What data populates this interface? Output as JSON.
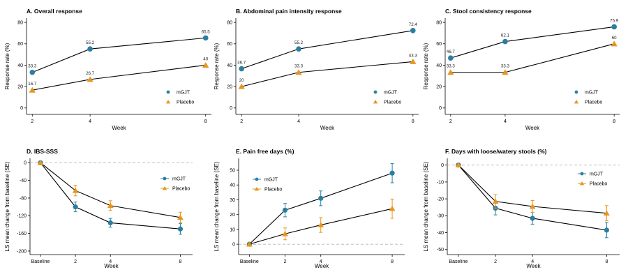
{
  "figure": {
    "background": "#ffffff"
  },
  "colors": {
    "mGJT": "#2a7fa0",
    "Placebo": "#e8951b",
    "line": "#000000",
    "zeroline": "#b4b4b4"
  },
  "chart_data": [
    {
      "id": "A",
      "type": "line",
      "title": "A. Overall response",
      "xlabel": "Week",
      "ylabel": "Response rate (%)",
      "x": [
        "2",
        "4",
        "8"
      ],
      "xpos": [
        2,
        4,
        8
      ],
      "xlim": [
        1.8,
        8.2
      ],
      "ylim": [
        -6,
        84
      ],
      "yticks": [
        0,
        20,
        40,
        60,
        80
      ],
      "yticklabels": [
        "0",
        "20",
        "40",
        "60",
        "80"
      ],
      "error_bars": false,
      "zero_line": false,
      "legend_position": "bottom-right",
      "series": [
        {
          "name": "mGJT",
          "marker": "circle",
          "values": [
            33.3,
            55.2,
            65.5
          ],
          "labels": [
            "33.3",
            "55.2",
            "65.5"
          ]
        },
        {
          "name": "Placebo",
          "marker": "triangle",
          "values": [
            16.7,
            26.7,
            40
          ],
          "labels": [
            "16.7",
            "26.7",
            "40"
          ]
        }
      ]
    },
    {
      "id": "B",
      "type": "line",
      "title": "B. Abdominal pain intensity response",
      "xlabel": "Week",
      "ylabel": "Response rate (%)",
      "x": [
        "2",
        "4",
        "8"
      ],
      "xpos": [
        2,
        4,
        8
      ],
      "xlim": [
        1.8,
        8.2
      ],
      "ylim": [
        -6,
        84
      ],
      "yticks": [
        0,
        20,
        40,
        60,
        80
      ],
      "yticklabels": [
        "0",
        "20",
        "40",
        "60",
        "80"
      ],
      "error_bars": false,
      "zero_line": false,
      "legend_position": "bottom-right",
      "series": [
        {
          "name": "mGJT",
          "marker": "circle",
          "values": [
            36.7,
            55.2,
            72.4
          ],
          "labels": [
            "36.7",
            "55.2",
            "72.4"
          ]
        },
        {
          "name": "Placebo",
          "marker": "triangle",
          "values": [
            20,
            33.3,
            43.3
          ],
          "labels": [
            "20",
            "33.3",
            "43.3"
          ]
        }
      ]
    },
    {
      "id": "C",
      "type": "line",
      "title": "C. Stool consistency response",
      "xlabel": "Week",
      "ylabel": "Response rate (%)",
      "x": [
        "2",
        "4",
        "8"
      ],
      "xpos": [
        2,
        4,
        8
      ],
      "xlim": [
        1.8,
        8.2
      ],
      "ylim": [
        -6,
        84
      ],
      "yticks": [
        0,
        20,
        40,
        60,
        80
      ],
      "yticklabels": [
        "0",
        "20",
        "40",
        "60",
        "80"
      ],
      "error_bars": false,
      "zero_line": false,
      "legend_position": "bottom-right",
      "series": [
        {
          "name": "mGJT",
          "marker": "circle",
          "values": [
            46.7,
            62.1,
            75.9
          ],
          "labels": [
            "46.7",
            "62.1",
            "75.9"
          ]
        },
        {
          "name": "Placebo",
          "marker": "triangle",
          "values": [
            33.3,
            33.3,
            60
          ],
          "labels": [
            "33.3",
            "33.3",
            "60"
          ]
        }
      ]
    },
    {
      "id": "D",
      "type": "line",
      "title": "D. IBS-SSS",
      "xlabel": "Week",
      "ylabel": "LS mean change from baseline (SE)",
      "x": [
        "Baseline",
        "2",
        "4",
        "8"
      ],
      "xpos": [
        0,
        2,
        4,
        8
      ],
      "xlim": [
        -0.6,
        8.7
      ],
      "ylim": [
        -208,
        10
      ],
      "yticks": [
        0,
        -40,
        -80,
        -120,
        -160,
        -200
      ],
      "yticklabels": [
        "0",
        "-40",
        "-80",
        "-120",
        "-160",
        "-200"
      ],
      "error_bars": true,
      "zero_line": true,
      "legend_position": "middle-right",
      "series": [
        {
          "name": "mGJT",
          "marker": "circle",
          "values": [
            0,
            -100,
            -136,
            -150
          ],
          "errors": [
            0,
            11,
            10,
            12
          ]
        },
        {
          "name": "Placebo",
          "marker": "triangle",
          "values": [
            0,
            -63,
            -97,
            -124
          ],
          "errors": [
            0,
            12,
            11,
            12
          ]
        }
      ]
    },
    {
      "id": "E",
      "type": "line",
      "title": "E. Pain free days (%)",
      "xlabel": "Week",
      "ylabel": "LS mean change from baseline (SE)",
      "x": [
        "Baseline",
        "2",
        "4",
        "8"
      ],
      "xpos": [
        0,
        2,
        4,
        8
      ],
      "xlim": [
        -0.6,
        8.7
      ],
      "ylim": [
        -7,
        58
      ],
      "yticks": [
        0,
        10,
        20,
        30,
        40,
        50
      ],
      "yticklabels": [
        "0",
        "10",
        "20",
        "30",
        "40",
        "50"
      ],
      "error_bars": true,
      "zero_line": true,
      "legend_position": "top-left",
      "series": [
        {
          "name": "mGJT",
          "marker": "circle",
          "values": [
            0,
            23,
            31,
            48
          ],
          "errors": [
            0,
            4.5,
            5,
            6.5
          ]
        },
        {
          "name": "Placebo",
          "marker": "triangle",
          "values": [
            0,
            7,
            13,
            24
          ],
          "errors": [
            0,
            4,
            5,
            6.5
          ]
        }
      ]
    },
    {
      "id": "F",
      "type": "line",
      "title": "F. Days with loose/watery stools (%)",
      "xlabel": "Week",
      "ylabel": "LS mean change from baseline (SE)",
      "x": [
        "Baseline",
        "2",
        "4",
        "8"
      ],
      "xpos": [
        0,
        2,
        4,
        8
      ],
      "xlim": [
        -0.6,
        8.7
      ],
      "ylim": [
        -53,
        4
      ],
      "yticks": [
        0,
        -10,
        -20,
        -30,
        -40,
        -50
      ],
      "yticklabels": [
        "0",
        "-10",
        "-20",
        "-30",
        "-40",
        "-50"
      ],
      "error_bars": true,
      "zero_line": true,
      "legend_position": "top-right",
      "series": [
        {
          "name": "mGJT",
          "marker": "circle",
          "values": [
            0,
            -25.5,
            -31.5,
            -38.5
          ],
          "errors": [
            0,
            4,
            3.5,
            4.5
          ]
        },
        {
          "name": "Placebo",
          "marker": "triangle",
          "values": [
            0,
            -21.5,
            -24.5,
            -28.5
          ],
          "errors": [
            0,
            4,
            3.5,
            4.5
          ]
        }
      ]
    }
  ]
}
